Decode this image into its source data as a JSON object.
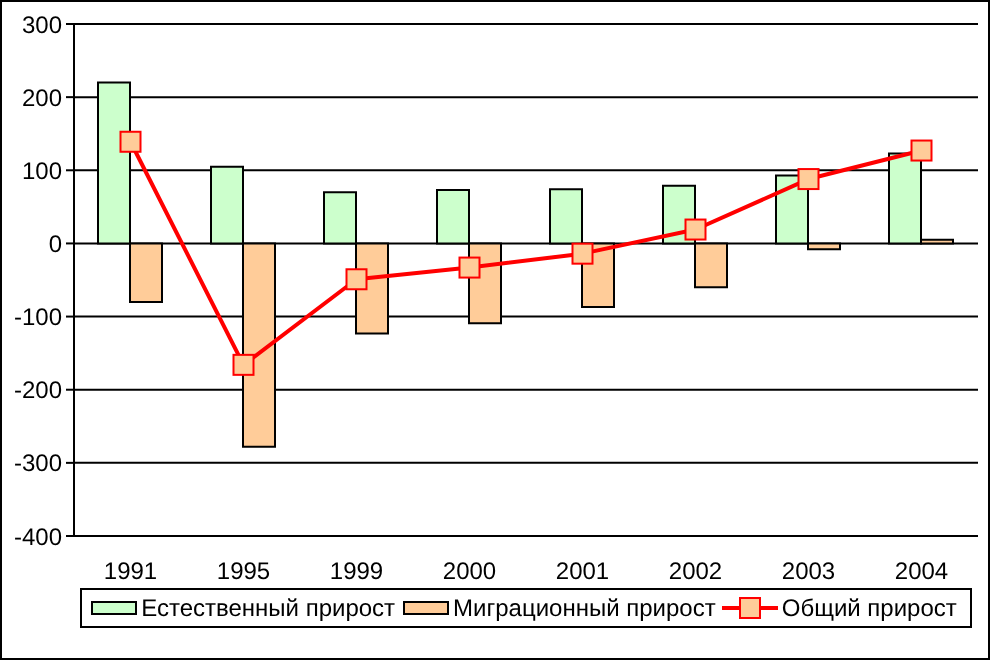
{
  "chart_data": {
    "type": "bar",
    "categories": [
      "1991",
      "1995",
      "1999",
      "2000",
      "2001",
      "2002",
      "2003",
      "2004"
    ],
    "series": [
      {
        "name": "Естественный прирост",
        "color": "#ccffcc",
        "values": [
          220,
          105,
          70,
          73,
          74,
          79,
          93,
          123
        ]
      },
      {
        "name": "Миграционный прирост",
        "color": "#ffcc99",
        "values": [
          -80,
          -278,
          -123,
          -109,
          -87,
          -60,
          -8,
          5
        ]
      },
      {
        "name": "Общий прирост",
        "type": "line",
        "color": "#ff0000",
        "values": [
          139,
          -166,
          -49,
          -33,
          -14,
          19,
          88,
          127
        ]
      }
    ],
    "ylim": [
      -400,
      300
    ],
    "yticks": [
      -400,
      -300,
      -200,
      -100,
      0,
      100,
      200,
      300
    ],
    "grid": "y",
    "legend": "bottom",
    "marker": "square"
  }
}
